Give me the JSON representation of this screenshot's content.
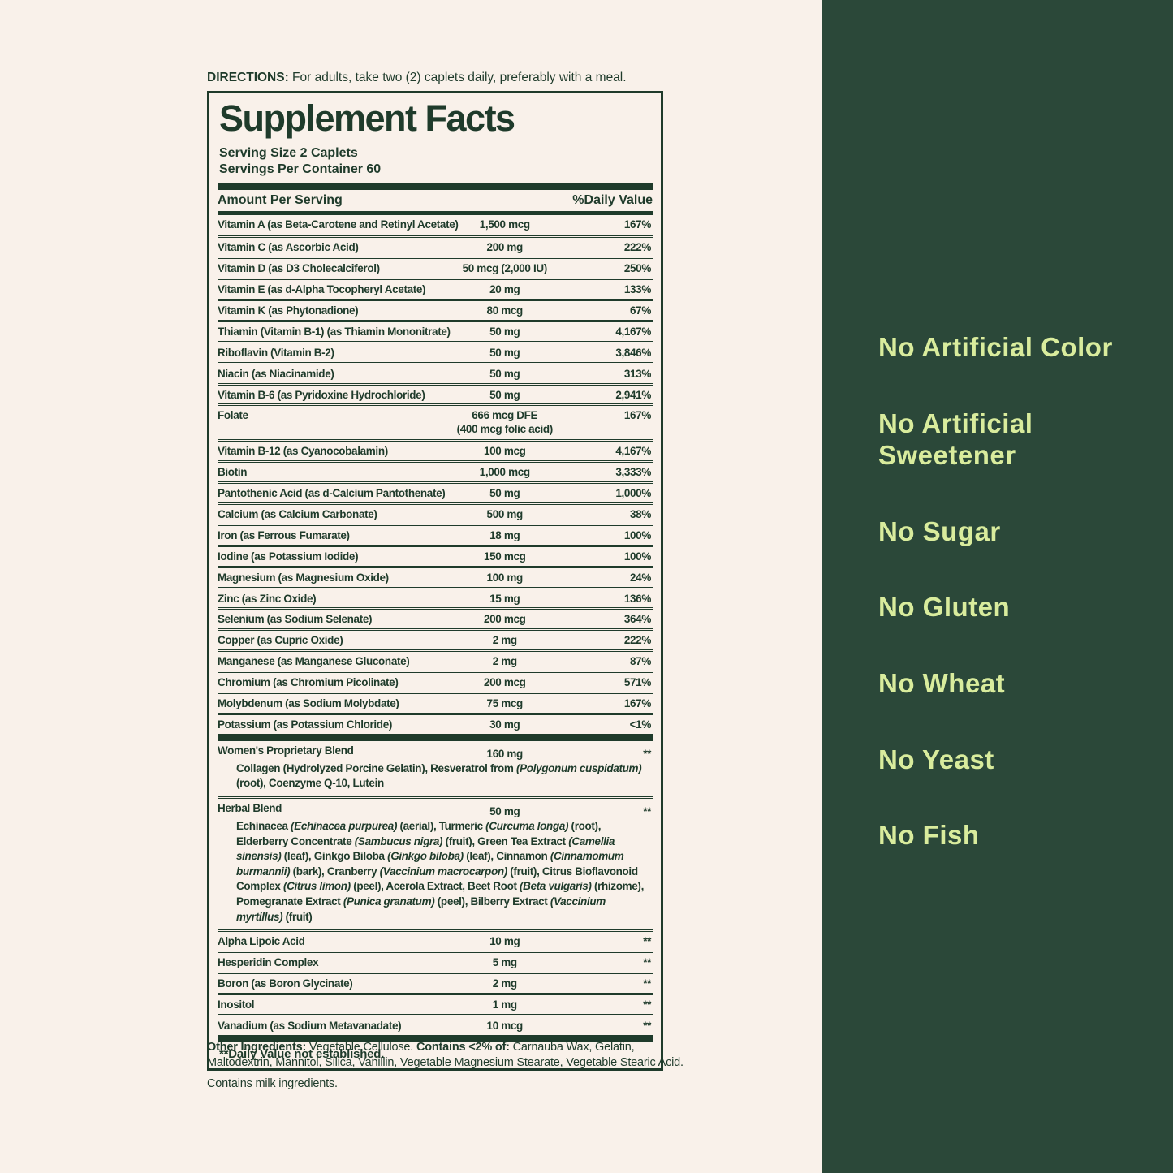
{
  "colors": {
    "background_cream": "#f9f1ea",
    "label_green": "#1f3b2b",
    "panel_green": "#2b4839",
    "claims_text_green": "#d9ec9d"
  },
  "directions": {
    "label": "DIRECTIONS:",
    "text": " For adults, take two (2) caplets daily, preferably with a meal."
  },
  "label": {
    "title": "Supplement Facts",
    "serving_size": "Serving Size 2 Caplets",
    "servings_per_container": "Servings Per Container 60",
    "col_amount": "Amount Per Serving",
    "col_dv": "%Daily Value",
    "rows": [
      {
        "name": "Vitamin A (as Beta-Carotene and Retinyl Acetate)",
        "amount": "1,500 mcg",
        "dv": "167%"
      },
      {
        "name": "Vitamin C (as Ascorbic Acid)",
        "amount": "200 mg",
        "dv": "222%"
      },
      {
        "name": "Vitamin D (as D3 Cholecalciferol)",
        "amount": "50 mcg (2,000 IU)",
        "dv": "250%"
      },
      {
        "name": "Vitamin E (as d-Alpha Tocopheryl Acetate)",
        "amount": "20 mg",
        "dv": "133%"
      },
      {
        "name": "Vitamin K (as Phytonadione)",
        "amount": "80 mcg",
        "dv": "67%"
      },
      {
        "name": "Thiamin (Vitamin B-1) (as Thiamin Mononitrate)",
        "amount": "50 mg",
        "dv": "4,167%"
      },
      {
        "name": "Riboflavin (Vitamin B-2)",
        "amount": "50 mg",
        "dv": "3,846%"
      },
      {
        "name": "Niacin (as Niacinamide)",
        "amount": "50 mg",
        "dv": "313%"
      },
      {
        "name": "Vitamin B-6 (as Pyridoxine Hydrochloride)",
        "amount": "50 mg",
        "dv": "2,941%"
      },
      {
        "name": "Folate",
        "amount": "666 mcg DFE",
        "amount2": "(400 mcg folic acid)",
        "dv": "167%"
      },
      {
        "name": "Vitamin B-12 (as Cyanocobalamin)",
        "amount": "100 mcg",
        "dv": "4,167%"
      },
      {
        "name": "Biotin",
        "amount": "1,000 mcg",
        "dv": "3,333%"
      },
      {
        "name": "Pantothenic Acid (as d-Calcium Pantothenate)",
        "amount": "50 mg",
        "dv": "1,000%"
      },
      {
        "name": "Calcium (as Calcium Carbonate)",
        "amount": "500 mg",
        "dv": "38%"
      },
      {
        "name": "Iron (as Ferrous Fumarate)",
        "amount": "18 mg",
        "dv": "100%"
      },
      {
        "name": "Iodine (as Potassium Iodide)",
        "amount": "150 mcg",
        "dv": "100%"
      },
      {
        "name": "Magnesium (as Magnesium Oxide)",
        "amount": "100 mg",
        "dv": "24%"
      },
      {
        "name": "Zinc (as Zinc Oxide)",
        "amount": "15 mg",
        "dv": "136%"
      },
      {
        "name": "Selenium (as Sodium Selenate)",
        "amount": "200 mcg",
        "dv": "364%"
      },
      {
        "name": "Copper (as Cupric Oxide)",
        "amount": "2 mg",
        "dv": "222%"
      },
      {
        "name": "Manganese (as Manganese Gluconate)",
        "amount": "2 mg",
        "dv": "87%"
      },
      {
        "name": "Chromium (as Chromium Picolinate)",
        "amount": "200 mcg",
        "dv": "571%"
      },
      {
        "name": "Molybdenum (as Sodium Molybdate)",
        "amount": "75 mcg",
        "dv": "167%"
      },
      {
        "name": "Potassium (as Potassium Chloride)",
        "amount": "30 mg",
        "dv": "<1%"
      }
    ],
    "blends": [
      {
        "name": "Women's Proprietary Blend",
        "amount": "160 mg",
        "dv": "**",
        "desc": [
          {
            "t": "Collagen (Hydrolyzed Porcine Gelatin), Resveratrol from "
          },
          {
            "t": "(Polygonum cuspidatum)",
            "i": true
          },
          {
            "t": " (root), Coenzyme Q-10, Lutein"
          }
        ]
      },
      {
        "name": "Herbal Blend",
        "amount": "50 mg",
        "dv": "**",
        "desc": [
          {
            "t": "Echinacea "
          },
          {
            "t": "(Echinacea purpurea)",
            "i": true
          },
          {
            "t": " (aerial), Turmeric "
          },
          {
            "t": "(Curcuma longa)",
            "i": true
          },
          {
            "t": " (root), Elderberry Concentrate "
          },
          {
            "t": "(Sambucus nigra)",
            "i": true
          },
          {
            "t": " (fruit), Green Tea Extract "
          },
          {
            "t": "(Camellia sinensis)",
            "i": true
          },
          {
            "t": " (leaf), Ginkgo Biloba "
          },
          {
            "t": "(Ginkgo biloba)",
            "i": true
          },
          {
            "t": " (leaf), Cinnamon "
          },
          {
            "t": "(Cinnamomum burmannii)",
            "i": true
          },
          {
            "t": " (bark), Cranberry "
          },
          {
            "t": "(Vaccinium macrocarpon)",
            "i": true
          },
          {
            "t": " (fruit), Citrus Bioflavonoid Complex "
          },
          {
            "t": "(Citrus limon)",
            "i": true
          },
          {
            "t": " (peel), Acerola Extract, Beet Root "
          },
          {
            "t": "(Beta vulgaris)",
            "i": true
          },
          {
            "t": " (rhizome), Pomegranate Extract "
          },
          {
            "t": "(Punica granatum)",
            "i": true
          },
          {
            "t": " (peel), Bilberry Extract "
          },
          {
            "t": "(Vaccinium myrtillus)",
            "i": true
          },
          {
            "t": " (fruit)"
          }
        ]
      }
    ],
    "extra_rows": [
      {
        "name": "Alpha Lipoic Acid",
        "amount": "10 mg",
        "dv": "**"
      },
      {
        "name": "Hesperidin Complex",
        "amount": "5 mg",
        "dv": "**"
      },
      {
        "name": "Boron (as Boron Glycinate)",
        "amount": "2 mg",
        "dv": "**"
      },
      {
        "name": "Inositol",
        "amount": "1 mg",
        "dv": "**"
      },
      {
        "name": "Vanadium (as Sodium Metavanadate)",
        "amount": "10 mcg",
        "dv": "**"
      }
    ],
    "footnote": "**Daily Value not established."
  },
  "other_ingredients": {
    "segments": [
      {
        "t": "Other Ingredients:",
        "b": true
      },
      {
        "t": " Vegetable Cellulose. "
      },
      {
        "t": "Contains <2% of:",
        "b": true
      },
      {
        "t": " Carnauba Wax, Gelatin, Maltodextrin, Mannitol, Silica, Vanillin, Vegetable Magnesium Stearate, Vegetable Stearic Acid."
      }
    ],
    "milk_statement": "Contains milk ingredients."
  },
  "panel": {
    "claims": [
      "No Artificial Color",
      "No Artificial\nSweetener",
      "No Sugar",
      "No Gluten",
      "No Wheat",
      "No Yeast",
      "No Fish"
    ]
  }
}
